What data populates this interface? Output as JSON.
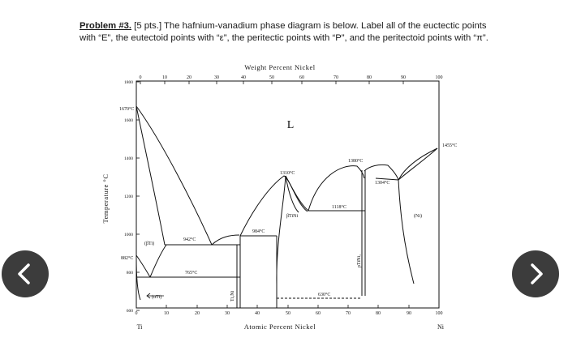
{
  "problem": {
    "number": "Problem #3.",
    "text": " [5 pts.] The hafnium-vanadium phase diagram is below. Label all of the euctectic points with “E”, the eutectoid points with “ε”, the peritectic points with “P”, and the peritectoid points with “π”."
  },
  "diagram": {
    "top_axis_title": "Weight Percent Nickel",
    "bottom_axis_title": "Atomic Percent Nickel",
    "y_axis_title": "Temperature °C",
    "left_element": "Ti",
    "right_element": "Ni",
    "top_ticks": [
      "0",
      "10",
      "20",
      "30",
      "40",
      "50",
      "60",
      "70",
      "80",
      "90",
      "100"
    ],
    "bottom_ticks": [
      "0",
      "10",
      "20",
      "30",
      "40",
      "50",
      "60",
      "70",
      "80",
      "90",
      "100"
    ],
    "y_ticks": [
      "1800",
      "1600",
      "1400",
      "1200",
      "1000",
      "800",
      "600"
    ],
    "labels": {
      "T1670": "1670°C",
      "T882": "882°C",
      "liquid": "L",
      "betaTi": "(βTi)",
      "alphaTi": "(αTi)",
      "T942": "942°C",
      "T765": "765°C",
      "T984": "984°C",
      "T1310": "1310°C",
      "T1380": "1380°C",
      "T1304": "1304°C",
      "T1118": "1118°C",
      "T1455": "1455°C",
      "T630": "630°C",
      "betaTiNi": "βTiNi",
      "Ti2Ni": "Ti₂Ni",
      "rhoTiNi3": "ρTiNi₃",
      "Ni_phase": "(Ni)"
    }
  },
  "navigation": {
    "prev_icon": "chevron-left-icon",
    "next_icon": "chevron-right-icon"
  }
}
